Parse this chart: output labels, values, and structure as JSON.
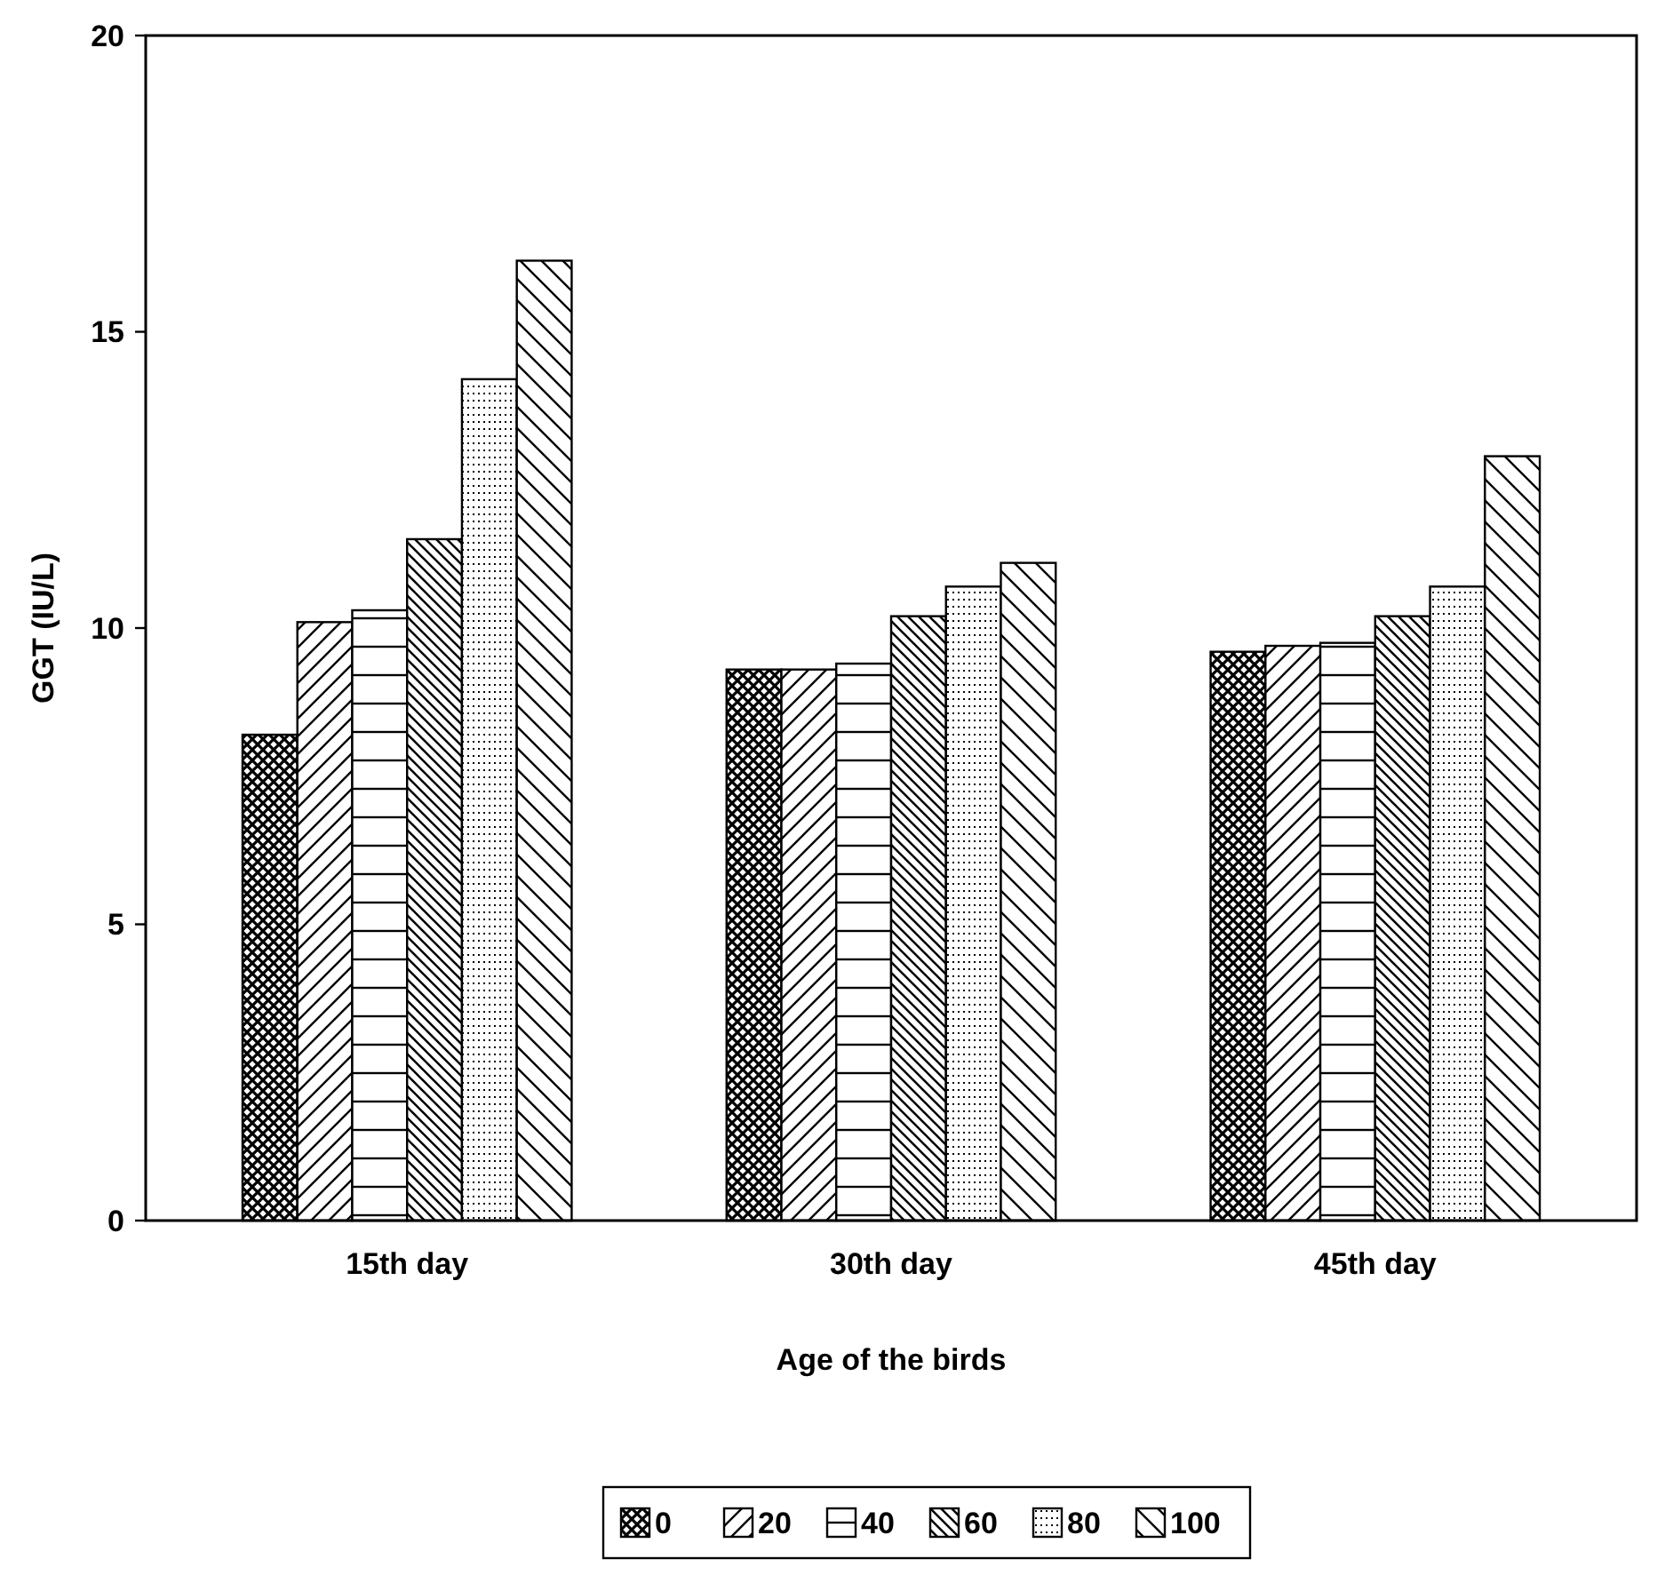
{
  "chart_data": {
    "type": "bar",
    "xlabel": "Age of the birds",
    "ylabel": "GGT (IU/L)",
    "categories": [
      "15th day",
      "30th day",
      "45th day"
    ],
    "series": [
      {
        "name": "0",
        "color": "#000000",
        "values": [
          8.2,
          9.3,
          9.6
        ]
      },
      {
        "name": "20",
        "color": "#000000",
        "values": [
          10.1,
          9.3,
          9.7
        ]
      },
      {
        "name": "40",
        "color": "#000000",
        "values": [
          10.3,
          9.4,
          9.75
        ]
      },
      {
        "name": "60",
        "color": "#000000",
        "values": [
          11.5,
          10.2,
          10.2
        ]
      },
      {
        "name": "80",
        "color": "#000000",
        "values": [
          14.2,
          10.7,
          10.7
        ]
      },
      {
        "name": "100",
        "color": "#000000",
        "values": [
          16.2,
          11.1,
          12.9
        ]
      }
    ],
    "ylim": [
      0,
      20
    ],
    "yticks": [
      0,
      5,
      10,
      15,
      20
    ],
    "grid": false,
    "legend": "bottom"
  }
}
